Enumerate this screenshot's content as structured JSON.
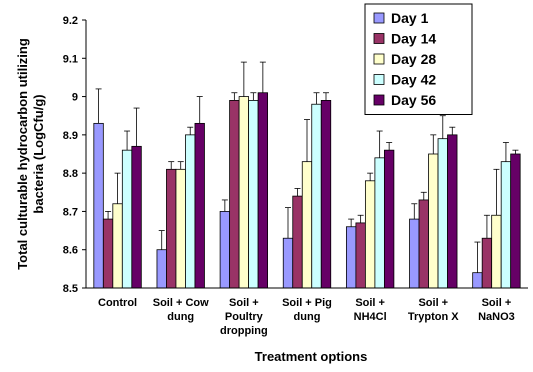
{
  "chart_data": {
    "type": "bar",
    "xlabel": "Treatment options",
    "ylabel_lines": [
      "Total culturable hydrocarbon utilizing",
      "bacteria (LogCfu/g)"
    ],
    "ylim": [
      8.5,
      9.2
    ],
    "yticks": [
      "8.5",
      "8.6",
      "8.7",
      "8.8",
      "8.9",
      "9",
      "9.1",
      "9.2"
    ],
    "grid": false,
    "legend_position": "top-right",
    "categories": [
      [
        "Control"
      ],
      [
        "Soil + Cow",
        "dung"
      ],
      [
        "Soil +",
        "Poultry",
        "dropping"
      ],
      [
        "Soil + Pig",
        "dung"
      ],
      [
        "Soil +",
        "NH4Cl"
      ],
      [
        "Soil +",
        "Trypton X"
      ],
      [
        "Soil +",
        "NaNO3"
      ]
    ],
    "series": [
      {
        "name": "Day 1",
        "color": "#9999ff",
        "values": [
          8.93,
          8.6,
          8.7,
          8.63,
          8.66,
          8.68,
          8.54
        ],
        "errors": [
          0.09,
          0.05,
          0.03,
          0.08,
          0.02,
          0.04,
          0.08
        ]
      },
      {
        "name": "Day 14",
        "color": "#993366",
        "values": [
          8.68,
          8.81,
          8.99,
          8.74,
          8.67,
          8.73,
          8.63
        ],
        "errors": [
          0.02,
          0.02,
          0.02,
          0.02,
          0.02,
          0.02,
          0.06
        ]
      },
      {
        "name": "Day 28",
        "color": "#ffffcc",
        "values": [
          8.72,
          8.81,
          9.0,
          8.83,
          8.78,
          8.85,
          8.69
        ],
        "errors": [
          0.08,
          0.02,
          0.09,
          0.11,
          0.02,
          0.05,
          0.12
        ]
      },
      {
        "name": "Day 42",
        "color": "#ccffff",
        "values": [
          8.86,
          8.9,
          8.99,
          8.98,
          8.84,
          8.89,
          8.83
        ],
        "errors": [
          0.05,
          0.02,
          0.02,
          0.03,
          0.07,
          0.06,
          0.05
        ]
      },
      {
        "name": "Day 56",
        "color": "#660066",
        "values": [
          8.87,
          8.93,
          9.01,
          8.99,
          8.86,
          8.9,
          8.85
        ],
        "errors": [
          0.1,
          0.07,
          0.08,
          0.02,
          0.02,
          0.02,
          0.01
        ]
      }
    ]
  }
}
